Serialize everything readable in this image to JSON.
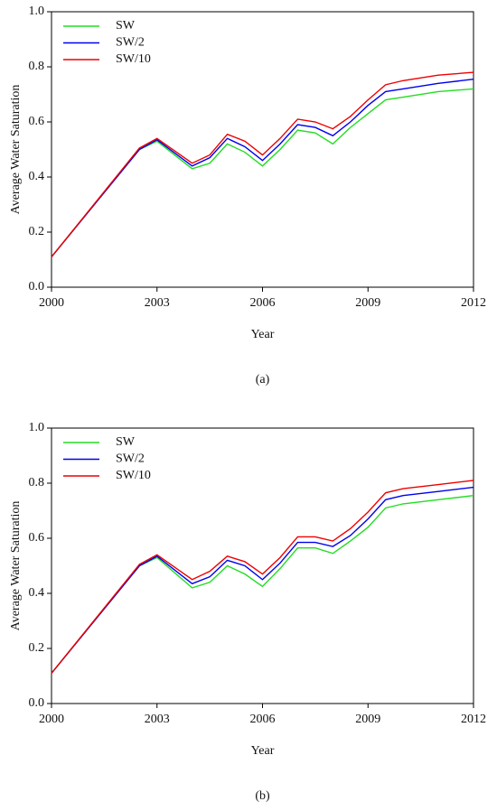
{
  "chart_data": [
    {
      "type": "line",
      "label": "(a)",
      "xlabel": "Year",
      "ylabel": "Average Water Saturation",
      "x": [
        2000,
        2002.5,
        2003,
        2004,
        2004.5,
        2005,
        2005.5,
        2006,
        2006.5,
        2007,
        2007.5,
        2008,
        2008.5,
        2009,
        2009.5,
        2010,
        2011,
        2012
      ],
      "series": [
        {
          "name": "SW",
          "color": "#22dd22",
          "values": [
            0.11,
            0.5,
            0.53,
            0.43,
            0.45,
            0.52,
            0.49,
            0.44,
            0.5,
            0.57,
            0.56,
            0.52,
            0.58,
            0.63,
            0.68,
            0.69,
            0.71,
            0.72
          ]
        },
        {
          "name": "SW/2",
          "color": "#0000ee",
          "values": [
            0.11,
            0.5,
            0.535,
            0.44,
            0.47,
            0.54,
            0.51,
            0.46,
            0.52,
            0.59,
            0.58,
            0.55,
            0.6,
            0.66,
            0.71,
            0.72,
            0.74,
            0.755
          ]
        },
        {
          "name": "SW/10",
          "color": "#ee0000",
          "values": [
            0.11,
            0.505,
            0.54,
            0.45,
            0.48,
            0.555,
            0.53,
            0.48,
            0.54,
            0.61,
            0.6,
            0.575,
            0.62,
            0.68,
            0.735,
            0.75,
            0.77,
            0.78
          ]
        }
      ],
      "xlim": [
        2000,
        2012
      ],
      "xticks": [
        2000,
        2003,
        2006,
        2009,
        2012
      ],
      "ylim": [
        0,
        1
      ],
      "yticks": [
        {
          "value": 0,
          "label": "0.0"
        },
        0.2,
        0.4,
        0.6,
        0.8,
        {
          "value": 1,
          "label": "1.0"
        }
      ],
      "legend": "upper left"
    },
    {
      "type": "line",
      "label": "(b)",
      "xlabel": "Year",
      "ylabel": "Average Water Saturation",
      "x": [
        2000,
        2002.5,
        2003,
        2004,
        2004.5,
        2005,
        2005.5,
        2006,
        2006.5,
        2007,
        2007.5,
        2008,
        2008.5,
        2009,
        2009.5,
        2010,
        2011,
        2012
      ],
      "series": [
        {
          "name": "SW",
          "color": "#22dd22",
          "values": [
            0.11,
            0.5,
            0.53,
            0.42,
            0.44,
            0.5,
            0.47,
            0.425,
            0.49,
            0.565,
            0.565,
            0.545,
            0.59,
            0.64,
            0.71,
            0.725,
            0.74,
            0.755
          ]
        },
        {
          "name": "SW/2",
          "color": "#0000ee",
          "values": [
            0.11,
            0.5,
            0.535,
            0.435,
            0.46,
            0.52,
            0.5,
            0.45,
            0.51,
            0.585,
            0.585,
            0.57,
            0.61,
            0.67,
            0.74,
            0.755,
            0.77,
            0.785
          ]
        },
        {
          "name": "SW/10",
          "color": "#ee0000",
          "values": [
            0.11,
            0.505,
            0.54,
            0.45,
            0.48,
            0.535,
            0.515,
            0.47,
            0.53,
            0.605,
            0.605,
            0.59,
            0.635,
            0.695,
            0.765,
            0.78,
            0.795,
            0.81
          ]
        }
      ],
      "xlim": [
        2000,
        2012
      ],
      "xticks": [
        2000,
        2003,
        2006,
        2009,
        2012
      ],
      "ylim": [
        0,
        1
      ],
      "yticks": [
        {
          "value": 0,
          "label": "0.0"
        },
        0.2,
        0.4,
        0.6,
        0.8,
        {
          "value": 1,
          "label": "1.0"
        }
      ],
      "legend": "upper left"
    }
  ]
}
